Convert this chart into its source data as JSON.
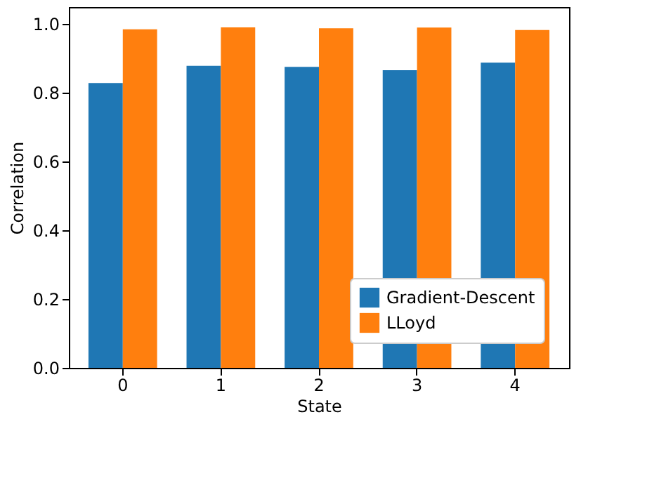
{
  "chart_data": {
    "type": "bar",
    "xlabel": "State",
    "ylabel": "Correlation",
    "categories": [
      "0",
      "1",
      "2",
      "3",
      "4"
    ],
    "series": [
      {
        "name": "Gradient-Descent",
        "color": "#1f77b4",
        "values": [
          0.829,
          0.879,
          0.876,
          0.866,
          0.888
        ]
      },
      {
        "name": "LLoyd",
        "color": "#ff7f0e",
        "values": [
          0.985,
          0.991,
          0.988,
          0.99,
          0.983
        ]
      }
    ],
    "ylim": [
      0,
      1.05
    ],
    "yticks": [
      {
        "value": 0,
        "label": "0.0"
      },
      0.2,
      0.4,
      0.6,
      0.8,
      {
        "value": 1,
        "label": "1.0"
      }
    ],
    "grid": false,
    "legend": "bottom right"
  }
}
